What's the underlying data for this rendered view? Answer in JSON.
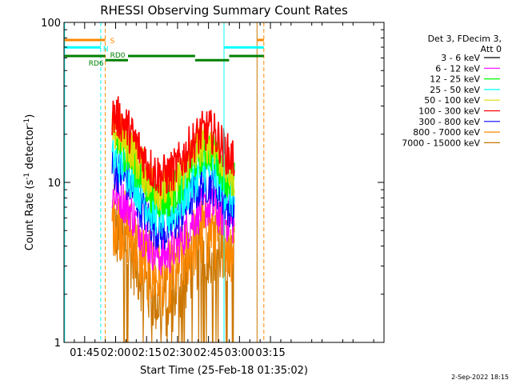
{
  "chart_data": {
    "type": "line",
    "title": "RHESSI Observing Summary Count Rates",
    "xlabel": "Start Time (25-Feb-18 01:35:02)",
    "ylabel_main": "Count Rate (s",
    "ylabel_sup": "-1",
    "ylabel_tail": " detector",
    "ylabel_end": ")",
    "y_scale": "log",
    "ylim": [
      1,
      100
    ],
    "xlim_minutes": [
      35,
      190
    ],
    "x_ticks": [
      {
        "label": "01:45",
        "minute": 45
      },
      {
        "label": "02:00",
        "minute": 60
      },
      {
        "label": "02:15",
        "minute": 75
      },
      {
        "label": "02:30",
        "minute": 90
      },
      {
        "label": "02:45",
        "minute": 105
      },
      {
        "label": "03:00",
        "minute": 120
      },
      {
        "label": "03:15",
        "minute": 135
      }
    ],
    "y_ticks": [
      {
        "label": "1",
        "value": 1
      },
      {
        "label": "10",
        "value": 10
      },
      {
        "label": "100",
        "value": 100
      }
    ],
    "legend_header": [
      "Det 3, FDecim 3,",
      "Att 0"
    ],
    "series": [
      {
        "name": "3 - 6 keV",
        "color": "#000000"
      },
      {
        "name": "6 - 12 keV",
        "color": "#ff00ff"
      },
      {
        "name": "12 - 25 keV",
        "color": "#00ff00"
      },
      {
        "name": "25 - 50 keV",
        "color": "#00ffff"
      },
      {
        "name": "50 - 100 keV",
        "color": "#dddd00"
      },
      {
        "name": "100 - 300 keV",
        "color": "#ff0000"
      },
      {
        "name": "300 - 800 keV",
        "color": "#0000ff"
      },
      {
        "name": "800 - 7000 keV",
        "color": "#ff8800"
      },
      {
        "name": "7000 - 15000 keV",
        "color": "#cc7700"
      }
    ],
    "profiles": {
      "t_start": 58.3,
      "t_end": 117.5,
      "dip_time": 83,
      "peak_time": 105,
      "levels": [
        {
          "color": "#cc7700",
          "start": 5.0,
          "dip": 1.8,
          "peak": 4.0,
          "end": 3.5
        },
        {
          "color": "#ff8800",
          "start": 6.0,
          "dip": 2.5,
          "peak": 5.0,
          "end": 4.0
        },
        {
          "color": "#ff00ff",
          "start": 8.5,
          "dip": 3.5,
          "peak": 7.0,
          "end": 5.5
        },
        {
          "color": "#0000ff",
          "start": 12.0,
          "dip": 5.0,
          "peak": 10.0,
          "end": 7.0
        },
        {
          "color": "#00ffff",
          "start": 14.0,
          "dip": 6.0,
          "peak": 12.0,
          "end": 8.0
        },
        {
          "color": "#00ff00",
          "start": 18.0,
          "dip": 8.0,
          "peak": 16.0,
          "end": 10.0
        },
        {
          "color": "#dddd00",
          "start": 21.0,
          "dip": 9.0,
          "peak": 18.0,
          "end": 11.0
        },
        {
          "color": "#ff0000",
          "start": 26.0,
          "dip": 11.0,
          "peak": 21.0,
          "end": 14.0
        }
      ]
    },
    "vertical_lines": [
      {
        "minute": 35.3,
        "color": "#00ffff",
        "style": "solid"
      },
      {
        "minute": 52.8,
        "color": "#00ffff",
        "style": "dashed"
      },
      {
        "minute": 55.0,
        "color": "#ff8800",
        "style": "dashed"
      },
      {
        "minute": 112.5,
        "color": "#00ffff",
        "style": "solid"
      },
      {
        "minute": 128.5,
        "color": "#cc7700",
        "style": "solid"
      },
      {
        "minute": 131.8,
        "color": "#ff8800",
        "style": "dashed"
      }
    ],
    "flag_bars": [
      {
        "name": "S",
        "color": "#ff8800",
        "y_frac": 0.945,
        "segments": [
          [
            35.3,
            55.0
          ],
          [
            128.8,
            131.8
          ]
        ]
      },
      {
        "name": "N",
        "color": "#00ffff",
        "y_frac": 0.922,
        "segments": [
          [
            35.3,
            52.8
          ],
          [
            112.5,
            131.8
          ]
        ]
      },
      {
        "name": "RD6",
        "color": "#008000",
        "y_frac": 0.895,
        "segments": [
          [
            35.3,
            55.0
          ]
        ]
      },
      {
        "name": "RD0",
        "color": "#008000",
        "y_frac": 0.882,
        "segments": [
          [
            55.0,
            66.0
          ]
        ]
      },
      {
        "name": "",
        "color": "#008000",
        "y_frac": 0.895,
        "segments": [
          [
            66.0,
            98.5
          ],
          [
            115.0,
            131.8
          ]
        ]
      },
      {
        "name": "",
        "color": "#008000",
        "y_frac": 0.882,
        "segments": [
          [
            98.5,
            115.0
          ]
        ]
      }
    ]
  },
  "footer_date": "2-Sep-2022 18:15"
}
